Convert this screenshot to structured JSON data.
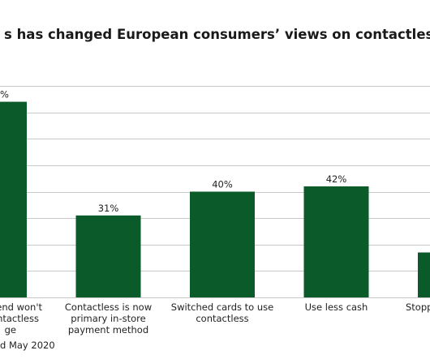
{
  "chart_data": {
    "type": "bar",
    "title": "s has changed European consumers’ views on contactless",
    "categories": [
      "end won't\nntactless\nge",
      "Contactless is now\nprimary in-store\npayment method",
      "Switched cards to use\ncontactless",
      "Use less cash",
      "Stopp"
    ],
    "values": [
      74,
      31,
      40,
      42,
      17
    ],
    "value_labels": [
      "%",
      "31%",
      "40%",
      "42%",
      null
    ],
    "color": "#0b5a2a",
    "ylim": [
      0,
      80
    ],
    "yticks": [
      0,
      10,
      20,
      30,
      40,
      50,
      60,
      70,
      80
    ],
    "grid": true,
    "source": "d May 2020"
  }
}
